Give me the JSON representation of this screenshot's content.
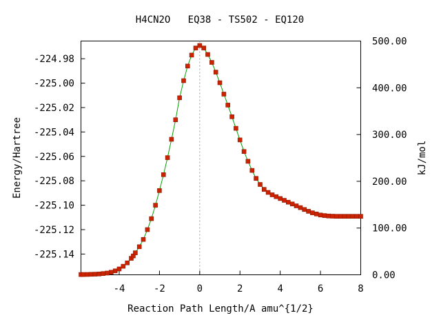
{
  "chart_data": {
    "type": "line",
    "title": "H4CN2O   EQ38 - TS502 - EQ120",
    "xlabel": "Reaction Path Length/A amu^{1/2}",
    "ylabel": "Energy/Hartree",
    "y2label": "kJ/mol",
    "xlim": [
      -5.9,
      8
    ],
    "ylim": [
      -225.157,
      -224.9655
    ],
    "y2lim": [
      0,
      500
    ],
    "xticks": [
      "-4",
      "-2",
      "0",
      "2",
      "4",
      "6",
      "8"
    ],
    "yticks": [
      "-224.98",
      "-225.00",
      "-225.02",
      "-225.04",
      "-225.06",
      "-225.08",
      "-225.10",
      "-225.12",
      "-225.14"
    ],
    "y2ticks": [
      "500.00",
      "400.00",
      "300.00",
      "200.00",
      "100.00",
      "0.00"
    ],
    "ts_marker_x": 0,
    "colors": {
      "line": "#00a000",
      "points": "#cc2200",
      "point_edge": "#8a1a00",
      "ts_line": "#999999"
    },
    "series": [
      {
        "x": [
          -5.9,
          -5.8,
          -5.6,
          -5.4,
          -5.2,
          -5.0,
          -4.8,
          -4.6,
          -4.4,
          -4.2,
          -4.0,
          -3.8,
          -3.6,
          -3.4,
          -3.3,
          -3.2,
          -3.0,
          -2.8,
          -2.6,
          -2.4,
          -2.2,
          -2.0,
          -1.8,
          -1.6,
          -1.4,
          -1.2,
          -1.0,
          -0.8,
          -0.6,
          -0.4,
          -0.2,
          0.0,
          0.2,
          0.4,
          0.6,
          0.8,
          1.0,
          1.2,
          1.4,
          1.6,
          1.8,
          2.0,
          2.2,
          2.4,
          2.6,
          2.8,
          3.0,
          3.2,
          3.4,
          3.6,
          3.8,
          4.0,
          4.2,
          4.4,
          4.6,
          4.8,
          5.0,
          5.2,
          5.4,
          5.6,
          5.8,
          6.0,
          6.2,
          6.4,
          6.6,
          6.8,
          7.0,
          7.2,
          7.4,
          7.6,
          7.8,
          8.0
        ],
        "y": [
          -225.1568,
          -225.1568,
          -225.1567,
          -225.1566,
          -225.1565,
          -225.1563,
          -225.156,
          -225.1556,
          -225.1549,
          -225.1538,
          -225.1522,
          -225.15,
          -225.1472,
          -225.1435,
          -225.1415,
          -225.139,
          -225.134,
          -225.128,
          -225.12,
          -225.111,
          -225.1,
          -225.088,
          -225.075,
          -225.061,
          -225.046,
          -225.03,
          -225.012,
          -224.998,
          -224.986,
          -224.977,
          -224.9712,
          -224.9692,
          -224.9712,
          -224.9765,
          -224.983,
          -224.991,
          -224.9997,
          -225.009,
          -225.018,
          -225.0275,
          -225.037,
          -225.0465,
          -225.056,
          -225.064,
          -225.0715,
          -225.078,
          -225.083,
          -225.087,
          -225.0895,
          -225.0915,
          -225.093,
          -225.0945,
          -225.096,
          -225.0975,
          -225.099,
          -225.1005,
          -225.102,
          -225.1035,
          -225.105,
          -225.1062,
          -225.1072,
          -225.108,
          -225.1085,
          -225.1088,
          -225.109,
          -225.1091,
          -225.1091,
          -225.1091,
          -225.1091,
          -225.1091,
          -225.1091,
          -225.1091
        ]
      }
    ]
  }
}
